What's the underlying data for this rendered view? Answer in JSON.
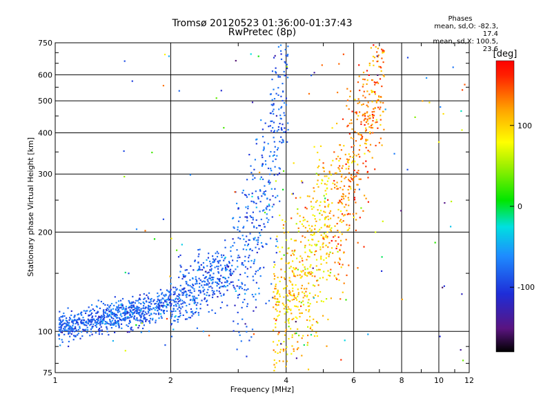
{
  "header": {
    "title_line1": "Tromsø 20120523 01:36:00-01:37:43",
    "title_line2": "RwPretec (8p)"
  },
  "phases_info": {
    "heading": "Phases",
    "line_o": "mean, sd,O: -82.3, 17.4",
    "line_x": "mean, sd,X: 100.5, 23.6"
  },
  "chart_data": {
    "type": "scatter",
    "title": "Tromsø 20120523 01:36:00-01:37:43",
    "subtitle": "RwPretec (8p)",
    "xlabel": "Frequency [MHz]",
    "ylabel": "Stationary phase Virtual Height [km]",
    "x_scale": "log",
    "y_scale": "log",
    "xlim": [
      1,
      12
    ],
    "ylim": [
      75,
      750
    ],
    "x_ticks": [
      1,
      2,
      4,
      6,
      8,
      10,
      12
    ],
    "y_ticks": [
      75,
      100,
      200,
      300,
      400,
      500,
      600,
      750
    ],
    "grid": true,
    "colorbar": {
      "label": "[deg]",
      "range": [
        -180,
        180
      ],
      "ticks": [
        -100,
        0,
        100
      ]
    },
    "series": [
      {
        "mode": "O",
        "mean_phase_deg": -82.3,
        "sd_phase_deg": 17.4,
        "trace_x_mhz": [
          1.0,
          1.1,
          1.2,
          1.35,
          1.5,
          1.65,
          1.8,
          1.95,
          2.1,
          2.3,
          2.5,
          2.8,
          3.0,
          3.2,
          3.4,
          3.6,
          3.8,
          4.0
        ],
        "trace_h_km": [
          103,
          104,
          106,
          110,
          112,
          115,
          118,
          122,
          128,
          135,
          142,
          150,
          160,
          175,
          200,
          280,
          450,
          640
        ]
      },
      {
        "mode": "X",
        "mean_phase_deg": 100.5,
        "sd_phase_deg": 23.6,
        "trace_x_mhz": [
          3.7,
          4.0,
          4.3,
          4.6,
          4.9,
          5.2,
          5.5,
          5.8,
          6.2,
          6.6,
          7.0
        ],
        "trace_h_km": [
          115,
          125,
          140,
          160,
          180,
          205,
          240,
          300,
          380,
          480,
          560
        ]
      }
    ]
  }
}
